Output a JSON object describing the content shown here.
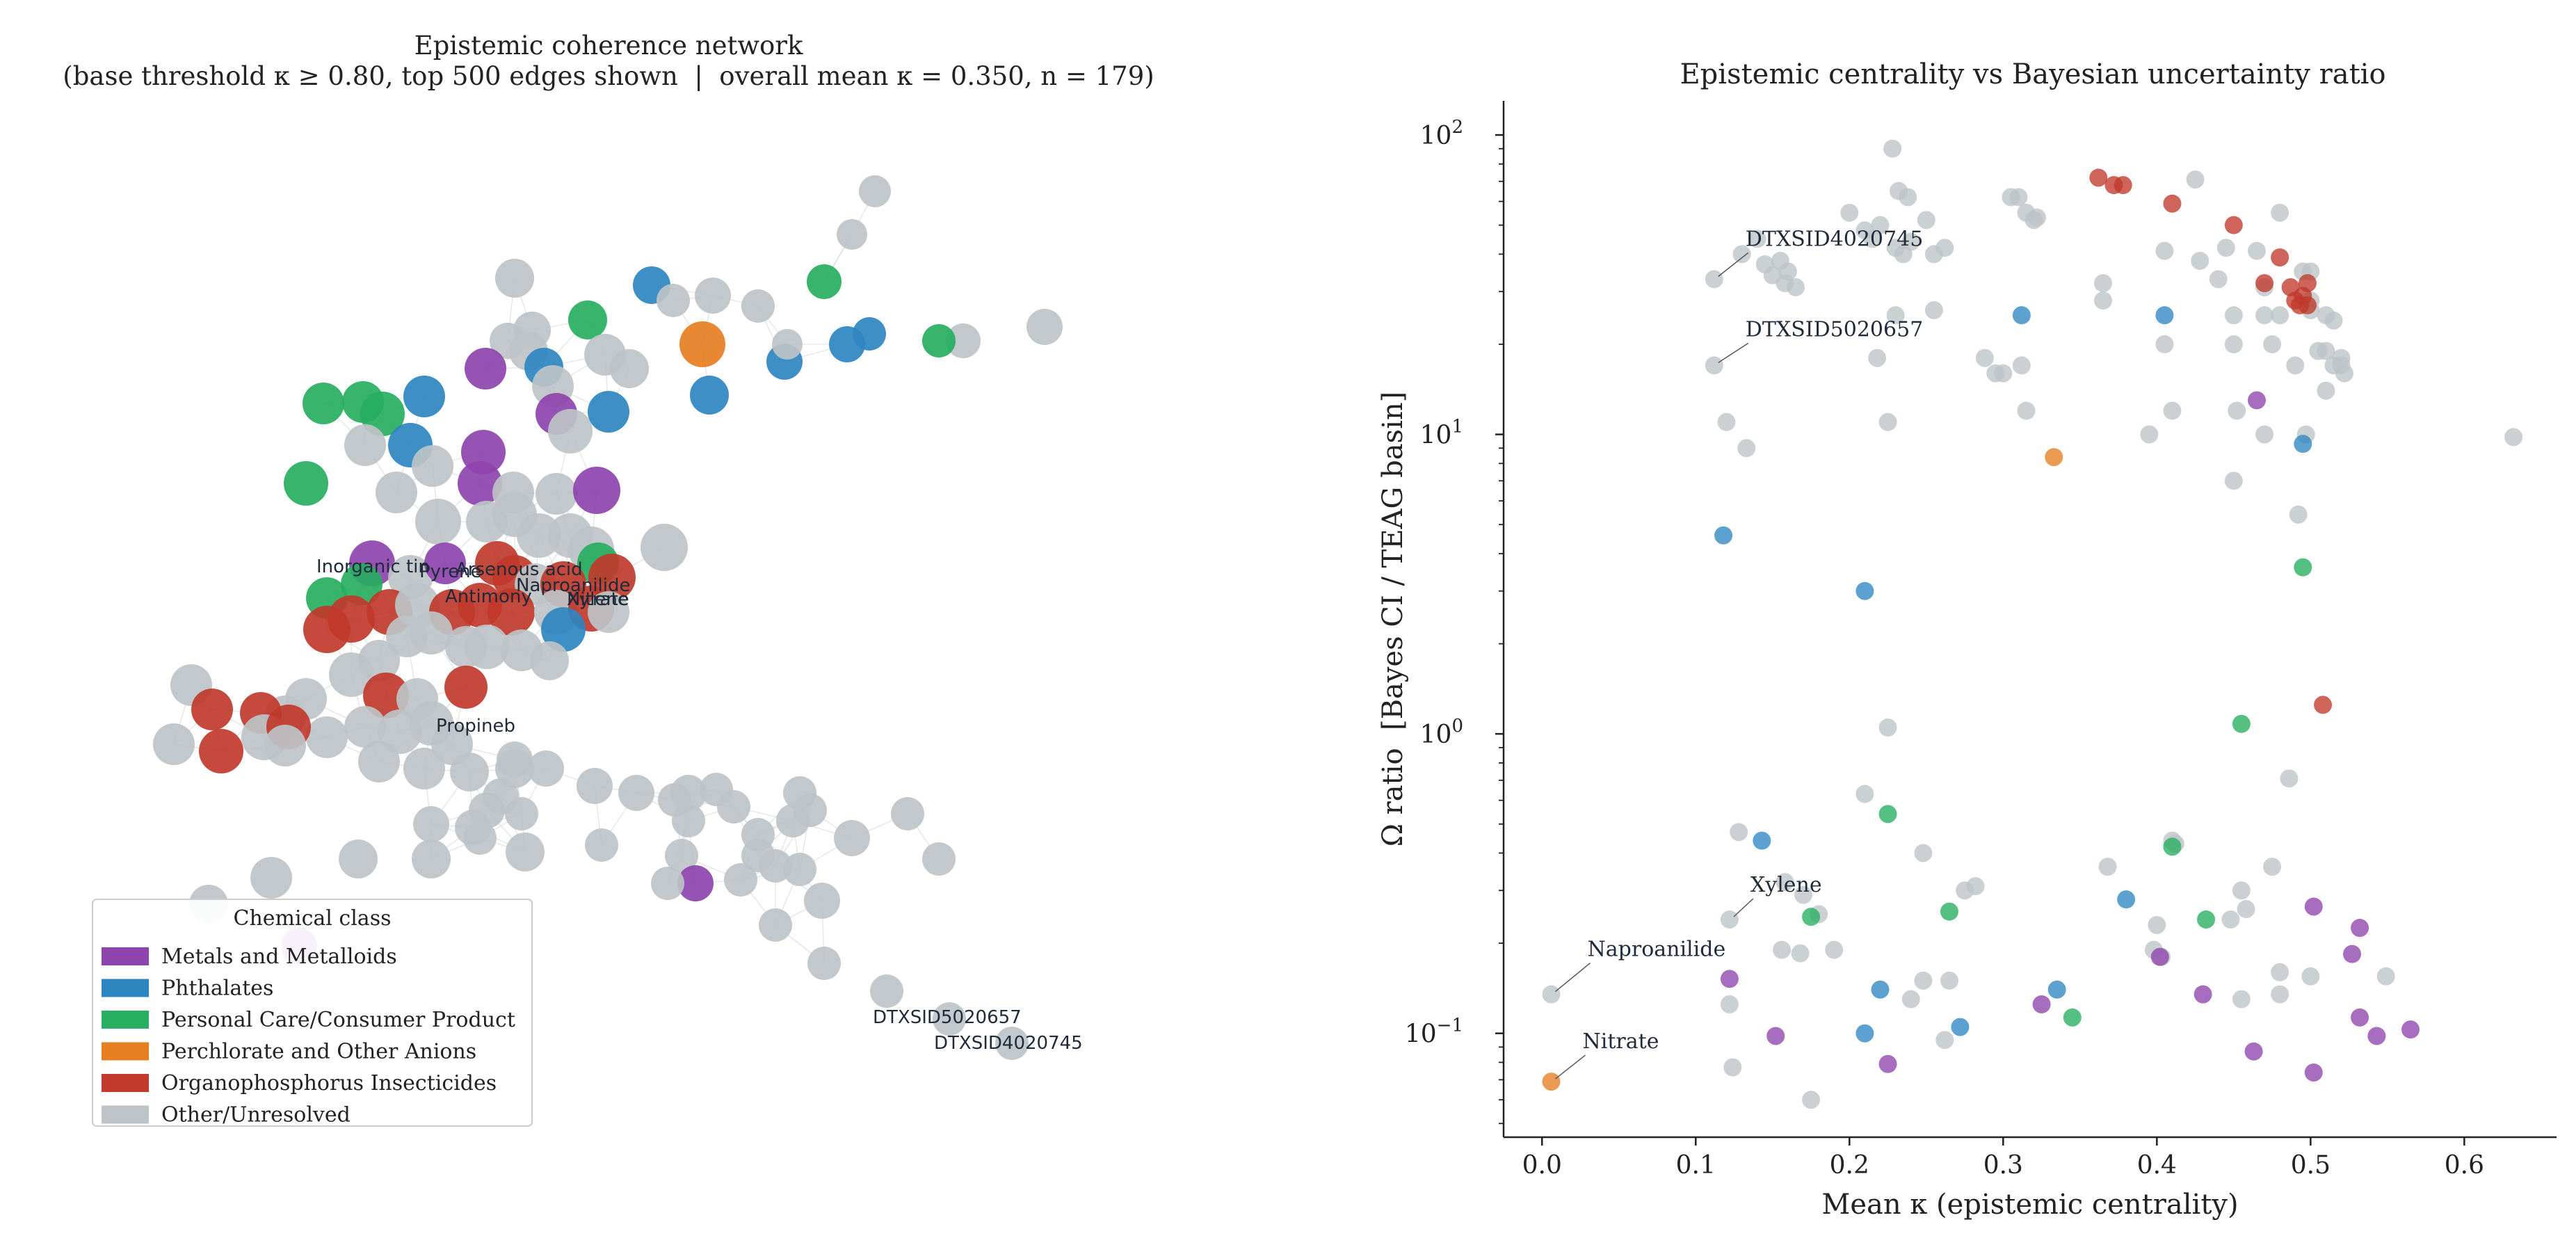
{
  "chart_data": [
    {
      "type": "network",
      "title": "Epistemic coherence network",
      "subtitle": "(base threshold κ ≥ 0.80, top 500 edges shown  |  overall mean κ = 0.350, n = 179)",
      "legend": {
        "title": "Chemical class",
        "placement": "lower-left",
        "entries": [
          {
            "name": "Metals and Metalloids",
            "color": "#8e44ad"
          },
          {
            "name": "Phthalates",
            "color": "#2e86c1"
          },
          {
            "name": "Personal Care/Consumer Product",
            "color": "#27ae60"
          },
          {
            "name": "Perchlorate and Other Anions",
            "color": "#e67e22"
          },
          {
            "name": "Organophosphorus Insecticides",
            "color": "#c0392b"
          },
          {
            "name": "Other/Unresolved",
            "color": "#bdc3c7"
          }
        ]
      },
      "node_labels": [
        "Inorganic tin",
        "Pyrene",
        "Arsenous acid",
        "Antimony",
        "Naproanilide",
        "Xylene",
        "Nitrate",
        "Propineb",
        "DTXSID5020657",
        "DTXSID4020745"
      ]
    },
    {
      "type": "scatter",
      "title": "Epistemic centrality vs Bayesian uncertainty ratio",
      "xlabel": "Mean κ (epistemic centrality)",
      "ylabel": "Ω ratio  [Bayes CI / TEAG basin]",
      "xlim": [
        -0.025,
        0.66
      ],
      "ylim": [
        0.045,
        130
      ],
      "yscale": "log",
      "xticks": [
        "0.0",
        "0.1",
        "0.2",
        "0.3",
        "0.4",
        "0.5",
        "0.6"
      ],
      "yticks": [
        {
          "base": "10",
          "exp": "−1"
        },
        {
          "base": "10",
          "exp": "0"
        },
        {
          "base": "10",
          "exp": "1"
        },
        {
          "base": "10",
          "exp": "2"
        }
      ],
      "annotations": [
        {
          "text": "DTXSID4020745",
          "x": 0.112,
          "y": 33
        },
        {
          "text": "DTXSID5020657",
          "x": 0.112,
          "y": 17
        },
        {
          "text": "Xylene",
          "x": 0.122,
          "y": 0.24
        },
        {
          "text": "Naproanilide",
          "x": 0.006,
          "y": 0.135
        },
        {
          "text": "Nitrate",
          "x": 0.006,
          "y": 0.069
        }
      ],
      "colors": {
        "Metals and Metalloids": "#8e44ad",
        "Phthalates": "#2e86c1",
        "Personal Care/Consumer Product": "#27ae60",
        "Perchlorate and Other Anions": "#e67e22",
        "Organophosphorus Insecticides": "#c0392b",
        "Other/Unresolved": "#bdc3c7"
      },
      "series": [
        {
          "category": "Other/Unresolved",
          "points": [
            [
              0.112,
              33
            ],
            [
              0.112,
              17
            ],
            [
              0.122,
              0.24
            ],
            [
              0.006,
              0.135
            ],
            [
              0.13,
              40
            ],
            [
              0.14,
              45
            ],
            [
              0.145,
              37
            ],
            [
              0.15,
              34
            ],
            [
              0.155,
              38
            ],
            [
              0.16,
              35
            ],
            [
              0.158,
              32
            ],
            [
              0.165,
              31
            ],
            [
              0.12,
              11
            ],
            [
              0.133,
              9
            ],
            [
              0.128,
              0.47
            ],
            [
              0.122,
              0.125
            ],
            [
              0.124,
              0.077
            ],
            [
              0.158,
              0.32
            ],
            [
              0.17,
              0.29
            ],
            [
              0.156,
              0.19
            ],
            [
              0.18,
              0.25
            ],
            [
              0.19,
              0.19
            ],
            [
              0.175,
              0.06
            ],
            [
              0.2,
              55
            ],
            [
              0.21,
              48
            ],
            [
              0.215,
              45
            ],
            [
              0.22,
              50
            ],
            [
              0.23,
              42
            ],
            [
              0.235,
              40
            ],
            [
              0.232,
              65
            ],
            [
              0.238,
              62
            ],
            [
              0.228,
              90
            ],
            [
              0.24,
              44
            ],
            [
              0.25,
              52
            ],
            [
              0.255,
              40
            ],
            [
              0.262,
              42
            ],
            [
              0.255,
              26
            ],
            [
              0.23,
              25
            ],
            [
              0.218,
              18
            ],
            [
              0.225,
              11
            ],
            [
              0.21,
              0.63
            ],
            [
              0.225,
              1.05
            ],
            [
              0.248,
              0.4
            ],
            [
              0.24,
              0.13
            ],
            [
              0.248,
              0.15
            ],
            [
              0.262,
              0.095
            ],
            [
              0.265,
              0.15
            ],
            [
              0.275,
              0.3
            ],
            [
              0.282,
              0.31
            ],
            [
              0.288,
              18
            ],
            [
              0.295,
              16
            ],
            [
              0.3,
              16
            ],
            [
              0.31,
              62
            ],
            [
              0.315,
              55
            ],
            [
              0.32,
              52
            ],
            [
              0.322,
              53
            ],
            [
              0.305,
              62
            ],
            [
              0.312,
              17
            ],
            [
              0.315,
              12
            ],
            [
              0.365,
              32
            ],
            [
              0.365,
              28
            ],
            [
              0.405,
              41
            ],
            [
              0.395,
              10
            ],
            [
              0.41,
              12
            ],
            [
              0.405,
              20
            ],
            [
              0.425,
              71
            ],
            [
              0.428,
              38
            ],
            [
              0.41,
              0.44
            ],
            [
              0.412,
              0.43
            ],
            [
              0.368,
              0.36
            ],
            [
              0.4,
              0.23
            ],
            [
              0.398,
              0.19
            ],
            [
              0.403,
              0.18
            ],
            [
              0.44,
              33
            ],
            [
              0.445,
              42
            ],
            [
              0.45,
              25
            ],
            [
              0.45,
              20
            ],
            [
              0.452,
              12
            ],
            [
              0.45,
              7
            ],
            [
              0.455,
              0.3
            ],
            [
              0.458,
              0.26
            ],
            [
              0.455,
              0.13
            ],
            [
              0.448,
              0.24
            ],
            [
              0.465,
              41
            ],
            [
              0.47,
              10
            ],
            [
              0.47,
              31
            ],
            [
              0.47,
              25
            ],
            [
              0.475,
              20
            ],
            [
              0.48,
              55
            ],
            [
              0.48,
              25
            ],
            [
              0.475,
              0.36
            ],
            [
              0.48,
              0.16
            ],
            [
              0.48,
              0.135
            ],
            [
              0.486,
              0.71
            ],
            [
              0.49,
              17
            ],
            [
              0.5,
              35
            ],
            [
              0.492,
              5.4
            ],
            [
              0.495,
              35
            ],
            [
              0.5,
              28
            ],
            [
              0.5,
              26
            ],
            [
              0.51,
              25
            ],
            [
              0.505,
              19
            ],
            [
              0.51,
              19
            ],
            [
              0.515,
              17
            ],
            [
              0.515,
              24
            ],
            [
              0.52,
              18
            ],
            [
              0.52,
              17
            ],
            [
              0.522,
              16
            ],
            [
              0.549,
              0.155
            ],
            [
              0.632,
              9.8
            ],
            [
              0.497,
              10
            ],
            [
              0.51,
              14
            ],
            [
              0.5,
              0.155
            ],
            [
              0.168,
              0.185
            ]
          ]
        },
        {
          "category": "Organophosphorus Insecticides",
          "points": [
            [
              0.362,
              72
            ],
            [
              0.372,
              68
            ],
            [
              0.378,
              68
            ],
            [
              0.41,
              59
            ],
            [
              0.45,
              50
            ],
            [
              0.48,
              39
            ],
            [
              0.47,
              32
            ],
            [
              0.487,
              31
            ],
            [
              0.49,
              28
            ],
            [
              0.493,
              27
            ],
            [
              0.495,
              29
            ],
            [
              0.498,
              27
            ],
            [
              0.498,
              32
            ],
            [
              0.508,
              1.25
            ]
          ]
        },
        {
          "category": "Phthalates",
          "points": [
            [
              0.312,
              25
            ],
            [
              0.405,
              25
            ],
            [
              0.495,
              9.3
            ],
            [
              0.118,
              4.6
            ],
            [
              0.21,
              3.0
            ],
            [
              0.143,
              0.44
            ],
            [
              0.21,
              0.1
            ],
            [
              0.22,
              0.14
            ],
            [
              0.272,
              0.105
            ],
            [
              0.335,
              0.14
            ],
            [
              0.38,
              0.28
            ]
          ]
        },
        {
          "category": "Personal Care/Consumer Product",
          "points": [
            [
              0.495,
              3.6
            ],
            [
              0.455,
              1.08
            ],
            [
              0.225,
              0.54
            ],
            [
              0.41,
              0.42
            ],
            [
              0.175,
              0.245
            ],
            [
              0.265,
              0.255
            ],
            [
              0.432,
              0.24
            ],
            [
              0.345,
              0.113
            ]
          ]
        },
        {
          "category": "Metals and Metalloids",
          "points": [
            [
              0.465,
              13
            ],
            [
              0.122,
              0.152
            ],
            [
              0.152,
              0.098
            ],
            [
              0.225,
              0.079
            ],
            [
              0.325,
              0.125
            ],
            [
              0.402,
              0.18
            ],
            [
              0.43,
              0.135
            ],
            [
              0.463,
              0.087
            ],
            [
              0.502,
              0.265
            ],
            [
              0.527,
              0.184
            ],
            [
              0.532,
              0.225
            ],
            [
              0.532,
              0.113
            ],
            [
              0.543,
              0.098
            ],
            [
              0.565,
              0.103
            ],
            [
              0.502,
              0.074
            ]
          ]
        },
        {
          "category": "Perchlorate and Other Anions",
          "points": [
            [
              0.333,
              8.4
            ],
            [
              0.006,
              0.069
            ]
          ]
        }
      ]
    }
  ]
}
